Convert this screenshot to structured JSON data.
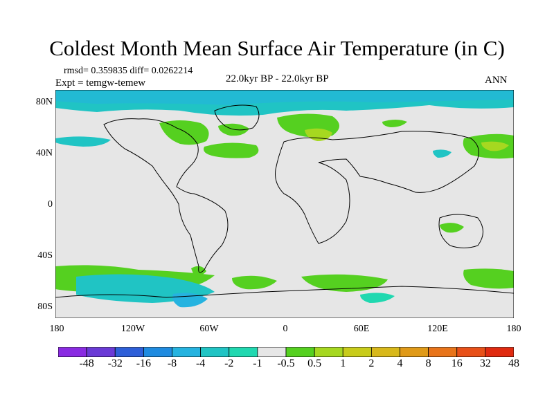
{
  "title": "Coldest Month Mean Surface Air Temperature (in C)",
  "stats": "rmsd= 0.359835 diff= 0.0262214",
  "expt": "Expt = temgw-temew",
  "period": "22.0kyr BP - 22.0kyr BP",
  "season": "ANN",
  "map": {
    "lat_labels": [
      "80N",
      "40N",
      "0",
      "40S",
      "80S"
    ],
    "lon_labels": [
      "180",
      "120W",
      "60W",
      "0",
      "60E",
      "120E",
      "180"
    ],
    "ocean_color": "#e6e6e6",
    "legend": {
      "labels": [
        "-48",
        "-32",
        "-16",
        "-8",
        "-4",
        "-2",
        "-1",
        "-0.5",
        "0.5",
        "1",
        "2",
        "4",
        "8",
        "16",
        "32",
        "48"
      ],
      "colors": [
        "#8a2be2",
        "#6a3ad6",
        "#2e5fd8",
        "#1f8be0",
        "#25b3e0",
        "#20c4c4",
        "#20d8b0",
        "#e6e6e6",
        "#55d020",
        "#a6d820",
        "#c8cc1a",
        "#d8b81a",
        "#e09a18",
        "#e8741a",
        "#e85018",
        "#e02a10"
      ]
    }
  }
}
